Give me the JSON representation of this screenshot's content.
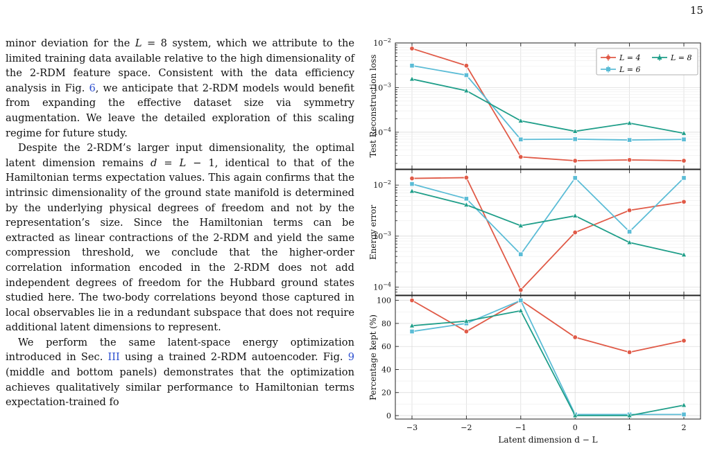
{
  "page": {
    "number": "15"
  },
  "paragraphs": [
    {
      "id": "p1",
      "indent": false,
      "parts": [
        {
          "t": "minor deviation for the "
        },
        {
          "t": "L",
          "i": true
        },
        {
          "t": " = 8 system, which we attribute to the limited training data available relative to the high dimensionality of the 2-RDM feature space. Consistent with the data efficiency analysis in Fig. "
        },
        {
          "t": "6",
          "link": true
        },
        {
          "t": ", we anticipate that 2-RDM models would benefit from expanding the effective dataset size via symmetry augmentation. We leave the detailed exploration of this scaling regime for future study."
        }
      ]
    },
    {
      "id": "p2",
      "indent": true,
      "parts": [
        {
          "t": "Despite the 2-RDM’s larger input dimensionality, the optimal latent dimension remains "
        },
        {
          "t": "d",
          "i": true
        },
        {
          "t": " = "
        },
        {
          "t": "L",
          "i": true
        },
        {
          "t": " − 1, identical to that of the Hamiltonian terms expectation values. This again confirms that the intrinsic dimensionality of the ground state manifold is determined by the underlying physical degrees of freedom and not by the representation’s size. Since the Hamiltonian terms can be extracted as linear contractions of the 2-RDM and yield the same compression threshold, we conclude that the higher-order correlation information encoded in the 2-RDM does not add independent degrees of freedom for the Hubbard ground states studied here. The two-body correlations beyond those captured in local observables lie in a redundant subspace that does not require additional latent dimensions to represent."
        }
      ]
    },
    {
      "id": "p3",
      "indent": true,
      "parts": [
        {
          "t": "We perform the same latent-space energy optimization introduced in Sec. "
        },
        {
          "t": "III",
          "link": true
        },
        {
          "t": " using a trained 2-RDM autoencoder. Fig. "
        },
        {
          "t": "9",
          "link": true
        },
        {
          "t": " (middle and bottom panels) demonstrates that the optimization achieves qualitatively similar performance to Hamiltonian terms expectation-trained fo"
        }
      ]
    }
  ],
  "chart_data": [
    {
      "type": "line",
      "panel": "top",
      "ylabel": "Test Reconstruction loss",
      "yscale": "log",
      "ylim": [
        1.5e-05,
        0.01
      ],
      "yticks": [
        {
          "v": 0.01,
          "base": "10",
          "exp": "−2"
        },
        {
          "v": 0.001,
          "base": "10",
          "exp": "−3"
        },
        {
          "v": 0.0001,
          "base": "10",
          "exp": "−4"
        }
      ],
      "x": [
        -3,
        -2,
        -1,
        0,
        1,
        2
      ],
      "legend": [
        {
          "label": "L = 4",
          "series": 0
        },
        {
          "label": "L = 8",
          "series": 2
        },
        {
          "label": "L = 6",
          "series": 1
        }
      ],
      "legend_position": "top-right",
      "series": [
        {
          "name": "L = 4",
          "color": "#e05a47",
          "marker": "circle",
          "values": [
            0.0075,
            0.0031,
            2.8e-05,
            2.3e-05,
            2.4e-05,
            2.3e-05
          ]
        },
        {
          "name": "L = 6",
          "color": "#5bbcd6",
          "marker": "square",
          "values": [
            0.0031,
            0.0019,
            6.9e-05,
            7e-05,
            6.7e-05,
            6.9e-05
          ]
        },
        {
          "name": "L = 8",
          "color": "#1f9e89",
          "marker": "triangle",
          "values": [
            0.00155,
            0.00085,
            0.00018,
            0.000105,
            0.00016,
            9.5e-05
          ]
        }
      ]
    },
    {
      "type": "line",
      "panel": "middle",
      "ylabel": "Energy error",
      "yscale": "log",
      "ylim": [
        7e-05,
        0.02
      ],
      "yticks": [
        {
          "v": 0.01,
          "base": "10",
          "exp": "−2"
        },
        {
          "v": 0.001,
          "base": "10",
          "exp": "−3"
        },
        {
          "v": 0.0001,
          "base": "10",
          "exp": "−4"
        }
      ],
      "x": [
        -3,
        -2,
        -1,
        0,
        1,
        2
      ],
      "series": [
        {
          "name": "L = 4",
          "color": "#e05a47",
          "marker": "circle",
          "values": [
            0.0135,
            0.014,
            8.8e-05,
            0.00118,
            0.0032,
            0.0047
          ]
        },
        {
          "name": "L = 6",
          "color": "#5bbcd6",
          "marker": "square",
          "values": [
            0.0105,
            0.0054,
            0.00044,
            0.0138,
            0.00122,
            0.0138
          ]
        },
        {
          "name": "L = 8",
          "color": "#1f9e89",
          "marker": "triangle",
          "values": [
            0.0076,
            0.0041,
            0.0016,
            0.0025,
            0.00075,
            0.00043
          ]
        }
      ]
    },
    {
      "type": "line",
      "panel": "bottom",
      "ylabel": "Percentage kept (%)",
      "yscale": "linear",
      "ylim": [
        -3,
        104
      ],
      "yticks": [
        {
          "v": 0,
          "label": "0"
        },
        {
          "v": 20,
          "label": "20"
        },
        {
          "v": 40,
          "label": "40"
        },
        {
          "v": 60,
          "label": "60"
        },
        {
          "v": 80,
          "label": "80"
        },
        {
          "v": 100,
          "label": "100"
        }
      ],
      "x": [
        -3,
        -2,
        -1,
        0,
        1,
        2
      ],
      "xticks": [
        "−3",
        "−2",
        "−1",
        "0",
        "1",
        "2"
      ],
      "xlabel": "Latent dimension d − L",
      "series": [
        {
          "name": "L = 4",
          "color": "#e05a47",
          "marker": "circle",
          "values": [
            100,
            73,
            100,
            68,
            55,
            65
          ]
        },
        {
          "name": "L = 6",
          "color": "#5bbcd6",
          "marker": "square",
          "values": [
            73,
            80,
            100,
            1,
            1,
            1
          ]
        },
        {
          "name": "L = 8",
          "color": "#1f9e89",
          "marker": "triangle",
          "values": [
            78,
            82,
            91,
            0,
            0,
            9
          ]
        }
      ]
    }
  ]
}
